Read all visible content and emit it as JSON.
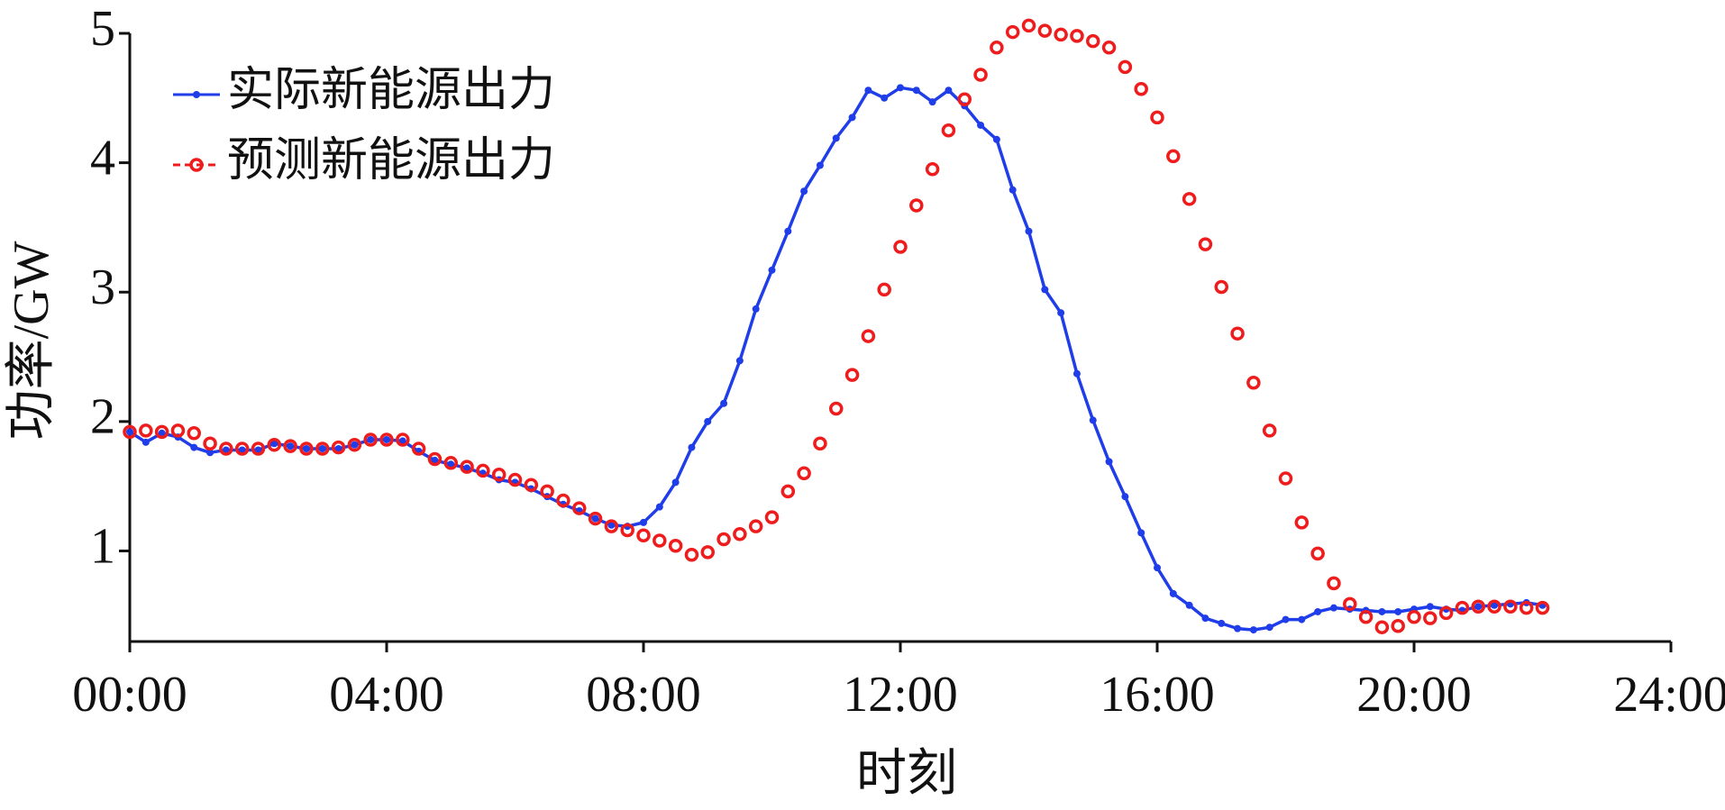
{
  "chart_data": {
    "type": "line",
    "x_label": "时刻",
    "y_label": "功率/GW",
    "x": [
      0,
      0.25,
      0.5,
      0.75,
      1,
      1.25,
      1.5,
      1.75,
      2,
      2.25,
      2.5,
      2.75,
      3,
      3.25,
      3.5,
      3.75,
      4,
      4.25,
      4.5,
      4.75,
      5,
      5.25,
      5.5,
      5.75,
      6,
      6.25,
      6.5,
      6.75,
      7,
      7.25,
      7.5,
      7.75,
      8,
      8.25,
      8.5,
      8.75,
      9,
      9.25,
      9.5,
      9.75,
      10,
      10.25,
      10.5,
      10.75,
      11,
      11.25,
      11.5,
      11.75,
      12,
      12.25,
      12.5,
      12.75,
      13,
      13.25,
      13.5,
      13.75,
      14,
      14.25,
      14.5,
      14.75,
      15,
      15.25,
      15.5,
      15.75,
      16,
      16.25,
      16.5,
      16.75,
      17,
      17.25,
      17.5,
      17.75,
      18,
      18.25,
      18.5,
      18.75,
      19,
      19.25,
      19.5,
      19.75,
      20,
      20.25,
      20.5,
      20.75,
      21,
      21.25,
      21.5,
      21.75,
      22
    ],
    "series": [
      {
        "name": "实际新能源出力",
        "color": "#1f3de8",
        "line": true,
        "marker": "dot",
        "values": [
          1.92,
          1.84,
          1.91,
          1.88,
          1.8,
          1.76,
          1.78,
          1.78,
          1.78,
          1.83,
          1.81,
          1.79,
          1.79,
          1.79,
          1.82,
          1.86,
          1.86,
          1.85,
          1.77,
          1.7,
          1.67,
          1.64,
          1.6,
          1.55,
          1.53,
          1.48,
          1.42,
          1.36,
          1.31,
          1.25,
          1.2,
          1.19,
          1.22,
          1.34,
          1.53,
          1.8,
          2.0,
          2.14,
          2.47,
          2.87,
          3.17,
          3.47,
          3.78,
          3.98,
          4.19,
          4.35,
          4.56,
          4.5,
          4.58,
          4.56,
          4.47,
          4.56,
          4.44,
          4.29,
          4.18,
          3.79,
          3.47,
          3.02,
          2.84,
          2.37,
          2.01,
          1.69,
          1.42,
          1.14,
          0.87,
          0.67,
          0.58,
          0.48,
          0.44,
          0.4,
          0.39,
          0.41,
          0.47,
          0.47,
          0.53,
          0.56,
          0.55,
          0.54,
          0.53,
          0.53,
          0.55,
          0.57,
          0.55,
          0.54,
          0.57,
          0.58,
          0.59,
          0.6,
          0.58
        ]
      },
      {
        "name": "预测新能源出力",
        "color": "#ee1c1c",
        "line": false,
        "marker": "circle",
        "values": [
          1.92,
          1.93,
          1.92,
          1.93,
          1.91,
          1.83,
          1.79,
          1.79,
          1.79,
          1.82,
          1.81,
          1.79,
          1.79,
          1.8,
          1.82,
          1.86,
          1.86,
          1.86,
          1.79,
          1.71,
          1.68,
          1.65,
          1.62,
          1.59,
          1.55,
          1.51,
          1.46,
          1.39,
          1.33,
          1.25,
          1.19,
          1.16,
          1.12,
          1.08,
          1.04,
          0.97,
          0.99,
          1.09,
          1.13,
          1.19,
          1.26,
          1.46,
          1.6,
          1.83,
          2.1,
          2.36,
          2.66,
          3.02,
          3.35,
          3.67,
          3.95,
          4.25,
          4.49,
          4.68,
          4.89,
          5.01,
          5.06,
          5.02,
          4.99,
          4.98,
          4.94,
          4.89,
          4.74,
          4.57,
          4.35,
          4.05,
          3.72,
          3.37,
          3.04,
          2.68,
          2.3,
          1.93,
          1.56,
          1.22,
          0.98,
          0.75,
          0.59,
          0.49,
          0.41,
          0.42,
          0.49,
          0.48,
          0.52,
          0.56,
          0.57,
          0.57,
          0.57,
          0.56,
          0.56
        ]
      }
    ],
    "xlim": [
      0,
      24
    ],
    "xticks": [
      {
        "value": 0,
        "label": "00:00"
      },
      {
        "value": 4,
        "label": "04:00"
      },
      {
        "value": 8,
        "label": "08:00"
      },
      {
        "value": 12,
        "label": "12:00"
      },
      {
        "value": 16,
        "label": "16:00"
      },
      {
        "value": 20,
        "label": "20:00"
      },
      {
        "value": 24,
        "label": "24:00"
      }
    ],
    "ylim": [
      0.3,
      5
    ],
    "yticks": [
      1,
      2,
      3,
      4,
      5
    ],
    "grid": false,
    "legend": "upper-left"
  }
}
